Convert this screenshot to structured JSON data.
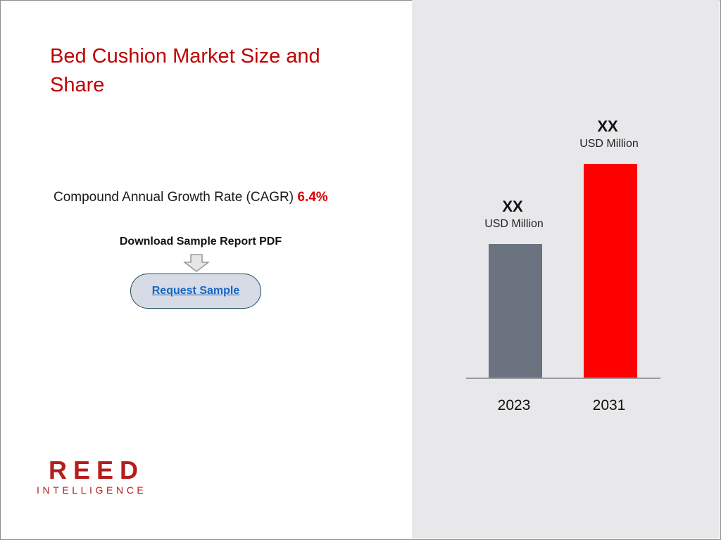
{
  "title": "Bed Cushion Market Size and Share",
  "cagr": {
    "label": "Compound Annual Growth Rate (CAGR)",
    "value": "6.4%"
  },
  "download": {
    "label": "Download Sample Report PDF",
    "arrow_icon": "down-arrow-icon",
    "button_label": "Request Sample"
  },
  "logo": {
    "main": "REED",
    "sub": "INTELLIGENCE"
  },
  "chart_data": {
    "type": "bar",
    "categories": [
      "2023",
      "2031"
    ],
    "values": [
      1.0,
      1.6
    ],
    "value_labels": [
      "XX",
      "XX"
    ],
    "unit_labels": [
      "USD Million",
      "USD Million"
    ],
    "colors": [
      "#6b7280",
      "#ff0000"
    ],
    "title": "",
    "xlabel": "",
    "ylabel": "",
    "grid": false
  },
  "colors": {
    "title": "#c00000",
    "accent": "#e00000",
    "panel_bg": "#e8e8ea",
    "button_bg": "#d6dbe6",
    "link": "#1565c0"
  }
}
